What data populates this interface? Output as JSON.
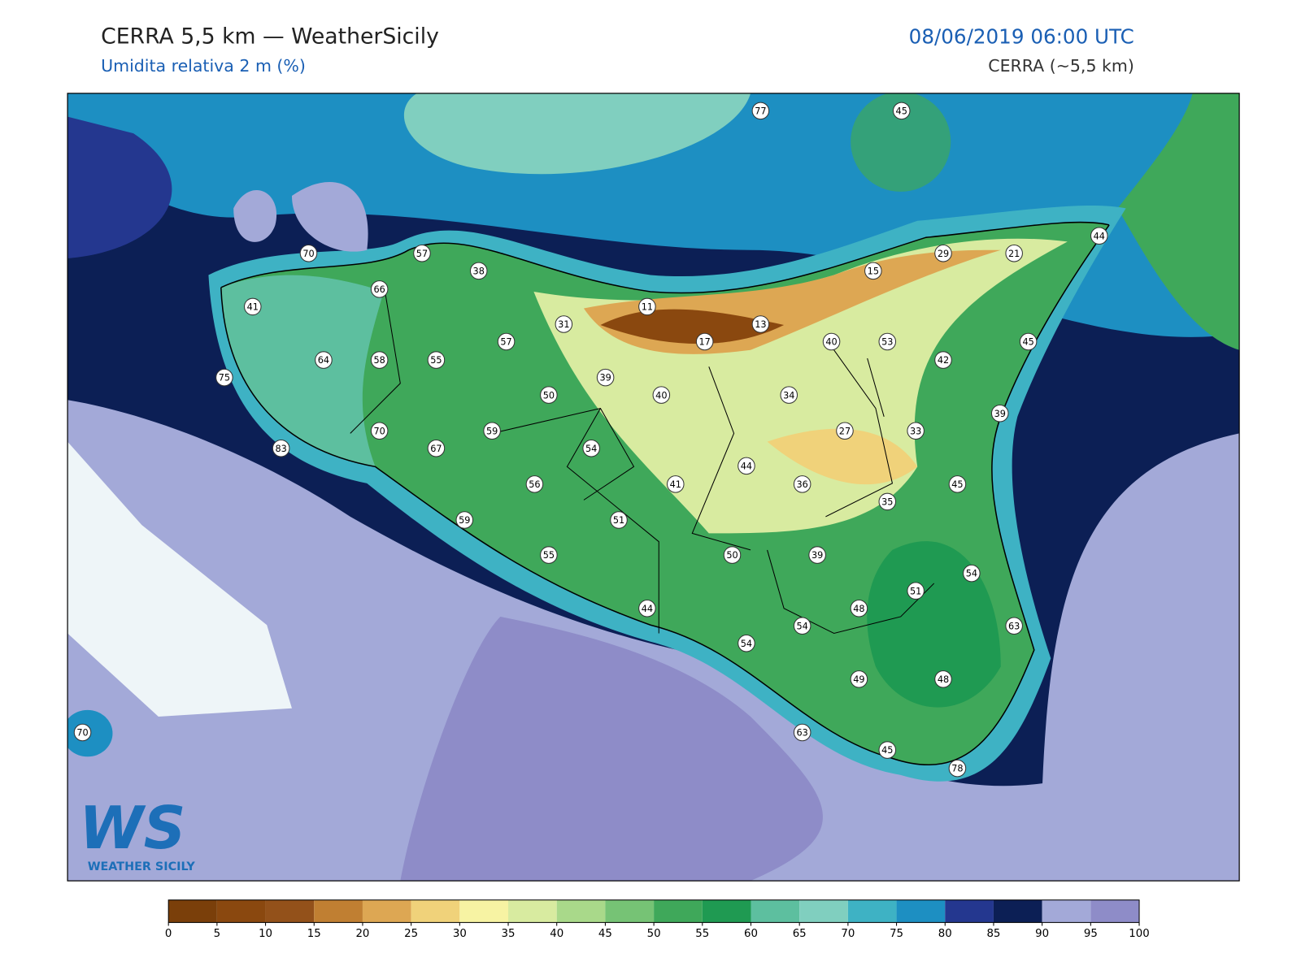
{
  "header": {
    "title": "CERRA 5,5 km — WeatherSicily",
    "subtitle": "Umidita relativa 2 m (%)",
    "datetime": "08/06/2019 06:00 UTC",
    "model": "CERRA (~5,5 km)"
  },
  "stations": [
    77,
    45,
    70,
    57,
    38,
    66,
    41,
    29,
    21,
    44,
    15,
    11,
    31,
    13,
    17,
    40,
    53,
    45,
    57,
    64,
    58,
    55,
    42,
    75,
    39,
    50,
    40,
    34,
    39,
    70,
    59,
    27,
    33,
    83,
    67,
    54,
    44,
    41,
    56,
    36,
    45,
    35,
    59,
    51,
    55,
    50,
    39,
    54,
    51,
    44,
    48,
    54,
    63,
    54,
    49,
    48,
    63,
    45,
    78,
    70
  ],
  "logo": {
    "mark": "WS",
    "name": "WEATHER SICILY"
  },
  "colorbar": {
    "ticks": [
      0,
      5,
      10,
      15,
      20,
      25,
      30,
      35,
      40,
      45,
      50,
      55,
      60,
      65,
      70,
      75,
      80,
      85,
      90,
      95,
      100
    ],
    "colors": [
      "#7a3f0a",
      "#8a480f",
      "#93511a",
      "#c07f32",
      "#dda753",
      "#f0d27a",
      "#f7f3a3",
      "#d8eba0",
      "#a9d98a",
      "#76c375",
      "#3fa85a",
      "#1f9a52",
      "#5dbf9f",
      "#80cfbf",
      "#3eb2c4",
      "#1d8fc2",
      "#24378f",
      "#0c1f55",
      "#a3a9d8",
      "#8e8cc8"
    ]
  }
}
